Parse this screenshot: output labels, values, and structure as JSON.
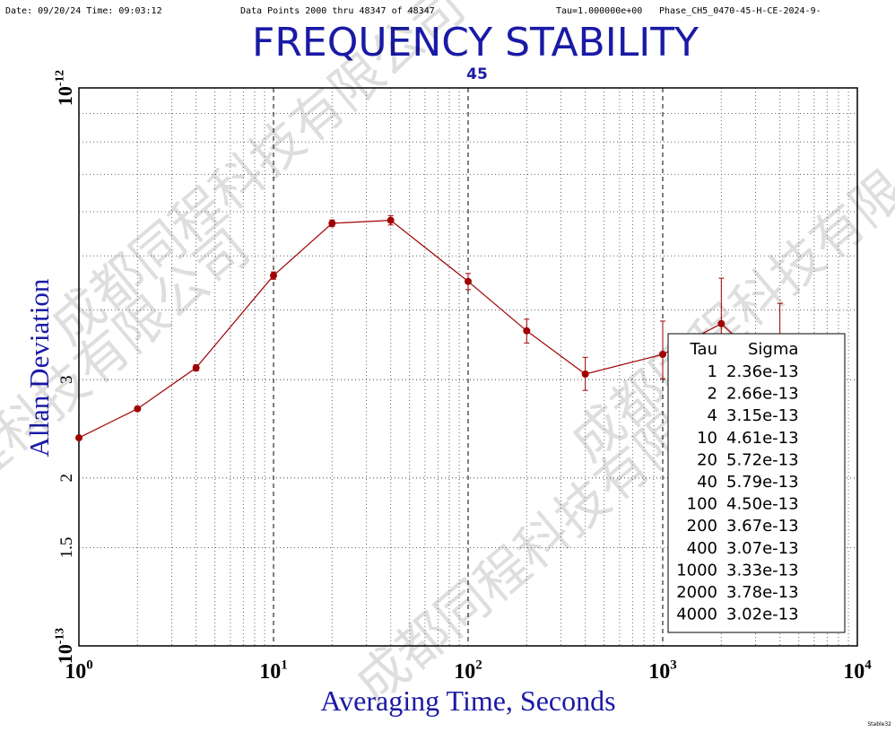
{
  "chart_data": {
    "type": "line",
    "header": [
      "Date: 09/20/24  Time: 09:03:12",
      "Data Points 2000 thru 48347 of 48347",
      "Tau=1.000000e+00",
      "Phase_CH5_0470-45-H-CE-2024-9-"
    ],
    "title": "FREQUENCY STABILITY",
    "subtitle": "45",
    "xlabel": "Averaging Time, Seconds",
    "ylabel": "Allan Deviation",
    "corner_note": "Stable32",
    "watermark": "成都同程科技有限公司",
    "log_x": true,
    "log_y": true,
    "grid": true,
    "xlim": [
      1,
      10000
    ],
    "xticks": [
      {
        "value": 1,
        "label": "100"
      },
      {
        "value": 10,
        "label": "101"
      },
      {
        "value": 100,
        "label": "102"
      },
      {
        "value": 1000,
        "label": "103"
      },
      {
        "value": 10000,
        "label": "104"
      }
    ],
    "ylim": [
      1e-13,
      1e-12
    ],
    "yticks": [
      {
        "value": 1e-13,
        "label": "10-13"
      },
      {
        "value": 1.5e-13,
        "label": "1.5"
      },
      {
        "value": 2e-13,
        "label": "2"
      },
      {
        "value": 3e-13,
        "label": "3"
      },
      {
        "value": 1e-12,
        "label": "10-12"
      }
    ],
    "table_headers": [
      "Tau",
      "Sigma"
    ],
    "x": [
      1,
      2,
      4,
      10,
      20,
      40,
      100,
      200,
      400,
      1000,
      2000,
      4000
    ],
    "series": [
      {
        "color": "#a00000",
        "values": [
          2.36e-13,
          2.66e-13,
          3.15e-13,
          4.61e-13,
          5.72e-13,
          5.79e-13,
          4.5e-13,
          3.67e-13,
          3.07e-13,
          3.33e-13,
          3.78e-13,
          3.02e-13
        ],
        "value_labels": [
          "2.36e-13",
          "2.66e-13",
          "3.15e-13",
          "4.61e-13",
          "5.72e-13",
          "5.79e-13",
          "4.50e-13",
          "3.67e-13",
          "3.07e-13",
          "3.33e-13",
          "3.78e-13",
          "3.02e-13"
        ],
        "errors_minus": [
          1e-15,
          2e-15,
          4e-15,
          7e-15,
          8e-15,
          1.1e-14,
          1.5e-14,
          1.8e-14,
          2e-14,
          3.2e-14,
          6.3e-14,
          8e-14
        ],
        "errors_plus": [
          1e-15,
          2e-15,
          4e-15,
          7e-15,
          8e-15,
          1.1e-14,
          1.5e-14,
          1.8e-14,
          2.2e-14,
          4.9e-14,
          7.8e-14,
          1.09e-13
        ]
      }
    ]
  }
}
